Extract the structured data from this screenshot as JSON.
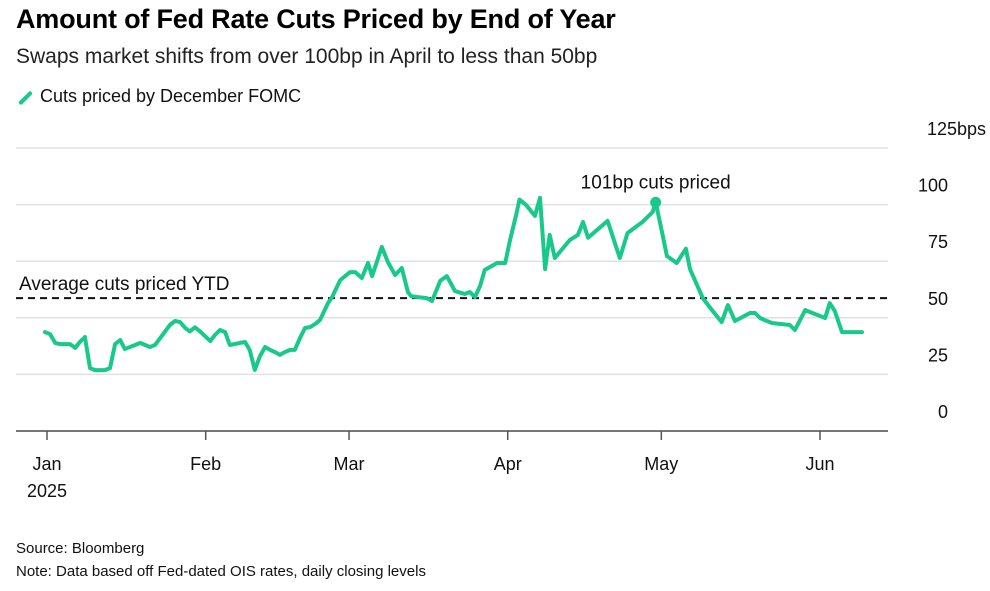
{
  "chart_data": {
    "type": "line",
    "title": "Amount of Fed Rate Cuts Priced by End of Year",
    "subtitle": "Swaps market shifts from over 100bp in April to less than 50bp",
    "legend": [
      {
        "name": "Cuts priced by December FOMC",
        "color": "#19c989"
      }
    ],
    "legend_placement": "top-left",
    "xlabel": "",
    "ylabel": "",
    "y_unit": "bps",
    "ylim": [
      0,
      125
    ],
    "yticks": [
      0,
      25,
      50,
      75,
      100,
      125
    ],
    "ytick_labels": [
      "0",
      "25",
      "50",
      "75",
      "100",
      "125bps"
    ],
    "y_axis_side": "right",
    "grid": true,
    "x_unit": "days since Jan 1 2025",
    "xlim": [
      -4,
      164
    ],
    "xticks": [
      {
        "day": 0,
        "label": "Jan",
        "sublabel": "2025"
      },
      {
        "day": 31,
        "label": "Feb"
      },
      {
        "day": 59,
        "label": "Mar"
      },
      {
        "day": 90,
        "label": "Apr"
      },
      {
        "day": 120,
        "label": "May"
      },
      {
        "day": 151,
        "label": "Jun"
      }
    ],
    "series": [
      {
        "name": "Cuts priced by December FOMC",
        "color": "#19c989",
        "points": [
          [
            -0.4,
            43.7
          ],
          [
            0.6,
            42.8
          ],
          [
            1.6,
            38.9
          ],
          [
            2.5,
            38.4
          ],
          [
            4.5,
            38.4
          ],
          [
            5.5,
            36.7
          ],
          [
            6.4,
            39.3
          ],
          [
            7.4,
            41.5
          ],
          [
            8.4,
            27.8
          ],
          [
            9.4,
            26.9
          ],
          [
            11.3,
            26.9
          ],
          [
            12.3,
            27.8
          ],
          [
            13.3,
            38.4
          ],
          [
            14.3,
            40.2
          ],
          [
            15.2,
            36.2
          ],
          [
            17.2,
            38.0
          ],
          [
            18.2,
            38.9
          ],
          [
            20.1,
            37.1
          ],
          [
            21.1,
            38.0
          ],
          [
            22.1,
            41.0
          ],
          [
            24.0,
            46.8
          ],
          [
            25.0,
            48.6
          ],
          [
            26.0,
            48.1
          ],
          [
            27.0,
            45.5
          ],
          [
            27.9,
            44.0
          ],
          [
            28.9,
            45.8
          ],
          [
            29.9,
            44.0
          ],
          [
            31.9,
            39.7
          ],
          [
            32.8,
            42.4
          ],
          [
            33.8,
            44.6
          ],
          [
            34.8,
            43.7
          ],
          [
            35.7,
            38.0
          ],
          [
            37.7,
            38.9
          ],
          [
            38.7,
            39.3
          ],
          [
            39.6,
            35.8
          ],
          [
            40.6,
            27.0
          ],
          [
            41.6,
            33.1
          ],
          [
            42.6,
            37.1
          ],
          [
            43.6,
            35.8
          ],
          [
            44.5,
            34.9
          ],
          [
            45.5,
            33.6
          ],
          [
            46.5,
            34.9
          ],
          [
            47.5,
            35.8
          ],
          [
            48.4,
            35.8
          ],
          [
            49.4,
            41.0
          ],
          [
            50.4,
            45.5
          ],
          [
            51.4,
            45.9
          ],
          [
            52.4,
            47.3
          ],
          [
            53.3,
            49.0
          ],
          [
            54.9,
            56.5
          ],
          [
            55.7,
            59.2
          ],
          [
            57.3,
            66.7
          ],
          [
            59.2,
            70.2
          ],
          [
            60.2,
            70.2
          ],
          [
            61.5,
            67.6
          ],
          [
            62.7,
            74.2
          ],
          [
            63.5,
            68.4
          ],
          [
            65.4,
            81.3
          ],
          [
            66.6,
            74.6
          ],
          [
            68.0,
            68.9
          ],
          [
            69.3,
            72.0
          ],
          [
            70.5,
            61.4
          ],
          [
            71.1,
            59.6
          ],
          [
            72.3,
            59.2
          ],
          [
            74.2,
            58.7
          ],
          [
            75.2,
            57.4
          ],
          [
            76.8,
            66.3
          ],
          [
            78.1,
            68.4
          ],
          [
            79.7,
            61.8
          ],
          [
            81.6,
            60.5
          ],
          [
            82.6,
            61.4
          ],
          [
            83.6,
            59.2
          ],
          [
            84.6,
            64.1
          ],
          [
            85.5,
            71.1
          ],
          [
            87.9,
            74.2
          ],
          [
            89.5,
            74.2
          ],
          [
            90.4,
            83.9
          ],
          [
            91.6,
            95.0
          ],
          [
            92.3,
            102.2
          ],
          [
            93.6,
            99.8
          ],
          [
            95.3,
            95.0
          ],
          [
            96.3,
            103.0
          ],
          [
            97.3,
            71.5
          ],
          [
            98.2,
            86.6
          ],
          [
            99.2,
            76.4
          ],
          [
            102.1,
            84.3
          ],
          [
            103.7,
            86.6
          ],
          [
            104.7,
            92.3
          ],
          [
            105.7,
            85.4
          ],
          [
            109.5,
            92.8
          ],
          [
            111.9,
            76.4
          ],
          [
            113.4,
            87.4
          ],
          [
            116.3,
            92.3
          ],
          [
            118.3,
            96.7
          ],
          [
            118.9,
            101.0
          ],
          [
            120.1,
            88.3
          ],
          [
            121.1,
            77.3
          ],
          [
            123.0,
            74.2
          ],
          [
            124.8,
            80.5
          ],
          [
            125.6,
            71.5
          ],
          [
            128.1,
            58.7
          ],
          [
            129.9,
            53.4
          ],
          [
            131.8,
            48.1
          ],
          [
            133.0,
            55.6
          ],
          [
            134.4,
            48.6
          ],
          [
            137.3,
            52.1
          ],
          [
            138.3,
            52.1
          ],
          [
            139.3,
            49.9
          ],
          [
            140.2,
            49.0
          ],
          [
            141.6,
            47.7
          ],
          [
            145.1,
            46.8
          ],
          [
            146.1,
            44.6
          ],
          [
            148.1,
            53.4
          ],
          [
            152.0,
            49.9
          ],
          [
            152.9,
            56.5
          ],
          [
            153.9,
            53.0
          ],
          [
            155.3,
            43.7
          ],
          [
            159.2,
            43.7
          ]
        ]
      }
    ],
    "reference_lines": [
      {
        "label": "Average cuts priced YTD",
        "value": 58.7,
        "style": "dashed",
        "color": "#111111"
      }
    ],
    "annotations": [
      {
        "label": "101bp cuts priced",
        "day": 118.9,
        "value": 101.0,
        "marker": "dot"
      }
    ],
    "source": "Source: Bloomberg",
    "note": "Note: Data based off Fed-dated OIS rates, daily closing levels"
  }
}
